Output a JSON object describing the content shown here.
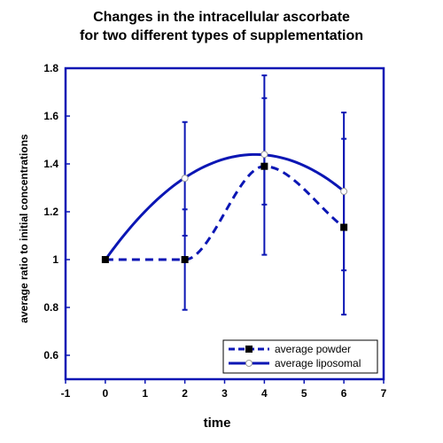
{
  "chart_data": {
    "type": "line",
    "title_lines": [
      "Changes in the intracellular ascorbate",
      "for two different types of supplementation"
    ],
    "xlabel": "time",
    "ylabel": "average ratio to initial concentrations",
    "xlim": [
      -1,
      7
    ],
    "ylim": [
      0.5,
      1.8
    ],
    "x_ticks": [
      -1,
      0,
      1,
      2,
      3,
      4,
      5,
      6,
      7
    ],
    "y_ticks": [
      0.6,
      0.8,
      1,
      1.2,
      1.4,
      1.6,
      1.8
    ],
    "grid": false,
    "legend_position": "bottom-right",
    "line_color": "#0b16b4",
    "series": [
      {
        "name": "average powder",
        "line_style": "dashed",
        "marker": "filled-square",
        "x": [
          0,
          2,
          4,
          6
        ],
        "y": [
          1.0,
          1.0,
          1.39,
          1.135
        ],
        "error_lower": [
          1.0,
          0.79,
          1.02,
          0.77
        ],
        "error_upper": [
          1.0,
          1.21,
          1.77,
          1.505
        ]
      },
      {
        "name": "average liposomal",
        "line_style": "solid",
        "marker": "open-circle",
        "x": [
          0,
          2,
          4,
          6
        ],
        "y": [
          1.0,
          1.34,
          1.44,
          1.285
        ],
        "error_lower": [
          1.0,
          1.1,
          1.23,
          0.955
        ],
        "error_upper": [
          1.0,
          1.575,
          1.675,
          1.615
        ]
      }
    ]
  }
}
